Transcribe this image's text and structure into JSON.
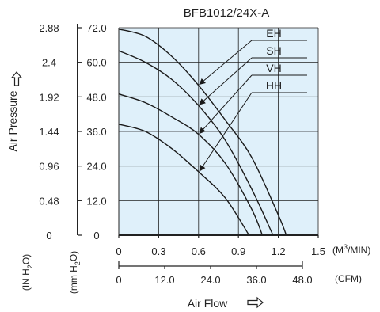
{
  "chart_data": {
    "type": "line",
    "title": "BFB1012/24X-A",
    "y_axis_in": {
      "unit": "(IN H",
      "sub": "2",
      "unit_end": "O)",
      "ticks": [
        "2.88",
        "2.4",
        "1.92",
        "1.44",
        "0.96",
        "0.48",
        "0"
      ]
    },
    "y_axis_mm": {
      "unit": "(mm H",
      "sub": "2",
      "unit_end": "O)",
      "ticks": [
        "72.0",
        "60.0",
        "48.0",
        "36.0",
        "24.0",
        "12.0",
        "0"
      ]
    },
    "ylabel": "Air Pressure",
    "ylim": [
      0,
      72
    ],
    "x_axis_m3": {
      "unit": "(M",
      "sup": "3",
      "unit_end": "/MIN)",
      "ticks": [
        "0",
        "0.3",
        "0.6",
        "0.9",
        "1.2",
        "1.5"
      ]
    },
    "x_axis_cfm": {
      "unit": "(CFM)",
      "ticks": [
        "0",
        "12.0",
        "24.0",
        "36.0",
        "48.0"
      ]
    },
    "xlabel": "Air Flow",
    "xlim": [
      0,
      1.5
    ],
    "series": [
      {
        "name": "EH",
        "x": [
          0,
          0.2,
          0.4,
          0.6,
          0.8,
          1.0,
          1.2,
          1.26
        ],
        "y": [
          71.5,
          69,
          62,
          52,
          40,
          27,
          7,
          0
        ]
      },
      {
        "name": "SH",
        "x": [
          0,
          0.2,
          0.4,
          0.6,
          0.8,
          1.0,
          1.16
        ],
        "y": [
          64,
          60,
          54,
          45,
          33,
          16,
          0
        ]
      },
      {
        "name": "VH",
        "x": [
          0,
          0.2,
          0.4,
          0.6,
          0.8,
          1.0,
          1.08
        ],
        "y": [
          49,
          46,
          41,
          35,
          25,
          9,
          0
        ]
      },
      {
        "name": "HH",
        "x": [
          0,
          0.2,
          0.4,
          0.6,
          0.8,
          0.98
        ],
        "y": [
          38.5,
          36,
          30,
          22,
          13,
          0
        ]
      }
    ],
    "grid": true
  }
}
